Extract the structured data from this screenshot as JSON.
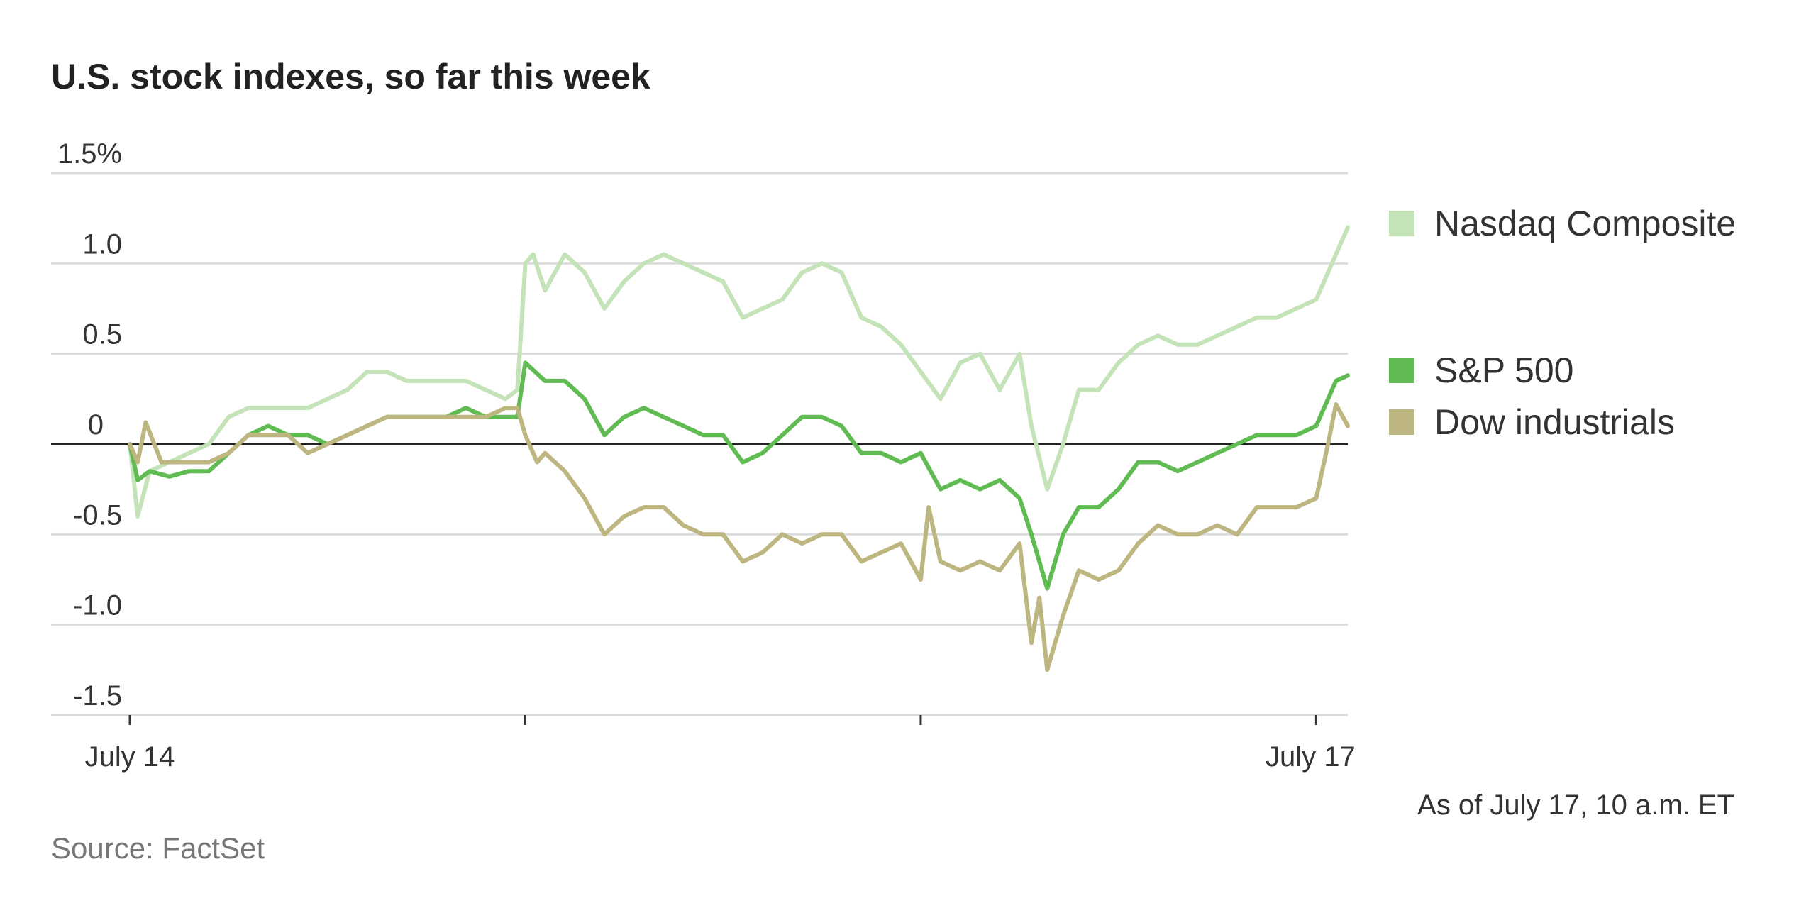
{
  "chart_data": {
    "type": "line",
    "title": "U.S. stock indexes, so far this week",
    "note": "As of July 17, 10 a.m. ET",
    "source": "Source: FactSet",
    "ylim": [
      -1.5,
      1.5
    ],
    "y_ticks": [
      {
        "value": 1.5,
        "label": "1.5%"
      },
      {
        "value": 1.0,
        "label": "1.0"
      },
      {
        "value": 0.5,
        "label": "0.5"
      },
      {
        "value": 0,
        "label": "0"
      },
      {
        "value": -0.5,
        "label": "-0.5"
      },
      {
        "value": -1.0,
        "label": "-1.0"
      },
      {
        "value": -1.5,
        "label": "-1.5"
      }
    ],
    "xlim": [
      0,
      3.08
    ],
    "x_ticks": [
      {
        "value": 0,
        "label": "July 14"
      },
      {
        "value": 1,
        "label": ""
      },
      {
        "value": 2,
        "label": ""
      },
      {
        "value": 3,
        "label": "July 17"
      }
    ],
    "grid": true,
    "legend_position": "right",
    "series": [
      {
        "name": "Nasdaq Composite",
        "color": "#c5e3b8",
        "points": [
          [
            0,
            0
          ],
          [
            0.02,
            -0.4
          ],
          [
            0.05,
            -0.15
          ],
          [
            0.1,
            -0.1
          ],
          [
            0.15,
            -0.05
          ],
          [
            0.2,
            0.0
          ],
          [
            0.25,
            0.15
          ],
          [
            0.3,
            0.2
          ],
          [
            0.35,
            0.2
          ],
          [
            0.4,
            0.2
          ],
          [
            0.45,
            0.2
          ],
          [
            0.5,
            0.25
          ],
          [
            0.55,
            0.3
          ],
          [
            0.6,
            0.4
          ],
          [
            0.65,
            0.4
          ],
          [
            0.7,
            0.35
          ],
          [
            0.75,
            0.35
          ],
          [
            0.8,
            0.35
          ],
          [
            0.85,
            0.35
          ],
          [
            0.9,
            0.3
          ],
          [
            0.95,
            0.25
          ],
          [
            0.98,
            0.3
          ],
          [
            1.0,
            1.0
          ],
          [
            1.02,
            1.05
          ],
          [
            1.05,
            0.85
          ],
          [
            1.1,
            1.05
          ],
          [
            1.15,
            0.95
          ],
          [
            1.2,
            0.75
          ],
          [
            1.25,
            0.9
          ],
          [
            1.3,
            1.0
          ],
          [
            1.35,
            1.05
          ],
          [
            1.4,
            1.0
          ],
          [
            1.45,
            0.95
          ],
          [
            1.5,
            0.9
          ],
          [
            1.55,
            0.7
          ],
          [
            1.6,
            0.75
          ],
          [
            1.65,
            0.8
          ],
          [
            1.7,
            0.95
          ],
          [
            1.75,
            1.0
          ],
          [
            1.8,
            0.95
          ],
          [
            1.85,
            0.7
          ],
          [
            1.9,
            0.65
          ],
          [
            1.95,
            0.55
          ],
          [
            2.0,
            0.4
          ],
          [
            2.05,
            0.25
          ],
          [
            2.1,
            0.45
          ],
          [
            2.15,
            0.5
          ],
          [
            2.2,
            0.3
          ],
          [
            2.25,
            0.5
          ],
          [
            2.28,
            0.1
          ],
          [
            2.32,
            -0.25
          ],
          [
            2.36,
            0.0
          ],
          [
            2.4,
            0.3
          ],
          [
            2.45,
            0.3
          ],
          [
            2.5,
            0.45
          ],
          [
            2.55,
            0.55
          ],
          [
            2.6,
            0.6
          ],
          [
            2.65,
            0.55
          ],
          [
            2.7,
            0.55
          ],
          [
            2.75,
            0.6
          ],
          [
            2.8,
            0.65
          ],
          [
            2.85,
            0.7
          ],
          [
            2.9,
            0.7
          ],
          [
            2.95,
            0.75
          ],
          [
            3.0,
            0.8
          ],
          [
            3.05,
            1.05
          ],
          [
            3.08,
            1.2
          ]
        ]
      },
      {
        "name": "S&P 500",
        "color": "#61bb53",
        "points": [
          [
            0,
            0
          ],
          [
            0.02,
            -0.2
          ],
          [
            0.05,
            -0.15
          ],
          [
            0.1,
            -0.18
          ],
          [
            0.15,
            -0.15
          ],
          [
            0.2,
            -0.15
          ],
          [
            0.25,
            -0.05
          ],
          [
            0.3,
            0.05
          ],
          [
            0.35,
            0.1
          ],
          [
            0.4,
            0.05
          ],
          [
            0.45,
            0.05
          ],
          [
            0.5,
            0.0
          ],
          [
            0.55,
            0.05
          ],
          [
            0.6,
            0.1
          ],
          [
            0.65,
            0.15
          ],
          [
            0.7,
            0.15
          ],
          [
            0.75,
            0.15
          ],
          [
            0.8,
            0.15
          ],
          [
            0.85,
            0.2
          ],
          [
            0.9,
            0.15
          ],
          [
            0.95,
            0.15
          ],
          [
            0.98,
            0.15
          ],
          [
            1.0,
            0.45
          ],
          [
            1.05,
            0.35
          ],
          [
            1.1,
            0.35
          ],
          [
            1.15,
            0.25
          ],
          [
            1.2,
            0.05
          ],
          [
            1.25,
            0.15
          ],
          [
            1.3,
            0.2
          ],
          [
            1.35,
            0.15
          ],
          [
            1.4,
            0.1
          ],
          [
            1.45,
            0.05
          ],
          [
            1.5,
            0.05
          ],
          [
            1.55,
            -0.1
          ],
          [
            1.6,
            -0.05
          ],
          [
            1.65,
            0.05
          ],
          [
            1.7,
            0.15
          ],
          [
            1.75,
            0.15
          ],
          [
            1.8,
            0.1
          ],
          [
            1.85,
            -0.05
          ],
          [
            1.9,
            -0.05
          ],
          [
            1.95,
            -0.1
          ],
          [
            2.0,
            -0.05
          ],
          [
            2.05,
            -0.25
          ],
          [
            2.1,
            -0.2
          ],
          [
            2.15,
            -0.25
          ],
          [
            2.2,
            -0.2
          ],
          [
            2.25,
            -0.3
          ],
          [
            2.28,
            -0.5
          ],
          [
            2.32,
            -0.8
          ],
          [
            2.36,
            -0.5
          ],
          [
            2.4,
            -0.35
          ],
          [
            2.45,
            -0.35
          ],
          [
            2.5,
            -0.25
          ],
          [
            2.55,
            -0.1
          ],
          [
            2.6,
            -0.1
          ],
          [
            2.65,
            -0.15
          ],
          [
            2.7,
            -0.1
          ],
          [
            2.75,
            -0.05
          ],
          [
            2.8,
            0.0
          ],
          [
            2.85,
            0.05
          ],
          [
            2.9,
            0.05
          ],
          [
            2.95,
            0.05
          ],
          [
            3.0,
            0.1
          ],
          [
            3.05,
            0.35
          ],
          [
            3.08,
            0.38
          ]
        ]
      },
      {
        "name": "Dow industrials",
        "color": "#beb680",
        "points": [
          [
            0,
            0
          ],
          [
            0.02,
            -0.1
          ],
          [
            0.04,
            0.12
          ],
          [
            0.08,
            -0.1
          ],
          [
            0.1,
            -0.1
          ],
          [
            0.15,
            -0.1
          ],
          [
            0.2,
            -0.1
          ],
          [
            0.25,
            -0.05
          ],
          [
            0.3,
            0.05
          ],
          [
            0.35,
            0.05
          ],
          [
            0.4,
            0.05
          ],
          [
            0.45,
            -0.05
          ],
          [
            0.5,
            0.0
          ],
          [
            0.55,
            0.05
          ],
          [
            0.6,
            0.1
          ],
          [
            0.65,
            0.15
          ],
          [
            0.7,
            0.15
          ],
          [
            0.75,
            0.15
          ],
          [
            0.8,
            0.15
          ],
          [
            0.85,
            0.15
          ],
          [
            0.9,
            0.15
          ],
          [
            0.95,
            0.2
          ],
          [
            0.98,
            0.2
          ],
          [
            1.0,
            0.05
          ],
          [
            1.03,
            -0.1
          ],
          [
            1.05,
            -0.05
          ],
          [
            1.1,
            -0.15
          ],
          [
            1.15,
            -0.3
          ],
          [
            1.2,
            -0.5
          ],
          [
            1.25,
            -0.4
          ],
          [
            1.3,
            -0.35
          ],
          [
            1.35,
            -0.35
          ],
          [
            1.4,
            -0.45
          ],
          [
            1.45,
            -0.5
          ],
          [
            1.5,
            -0.5
          ],
          [
            1.55,
            -0.65
          ],
          [
            1.6,
            -0.6
          ],
          [
            1.65,
            -0.5
          ],
          [
            1.7,
            -0.55
          ],
          [
            1.75,
            -0.5
          ],
          [
            1.8,
            -0.5
          ],
          [
            1.85,
            -0.65
          ],
          [
            1.9,
            -0.6
          ],
          [
            1.95,
            -0.55
          ],
          [
            2.0,
            -0.75
          ],
          [
            2.02,
            -0.35
          ],
          [
            2.05,
            -0.65
          ],
          [
            2.1,
            -0.7
          ],
          [
            2.15,
            -0.65
          ],
          [
            2.2,
            -0.7
          ],
          [
            2.25,
            -0.55
          ],
          [
            2.28,
            -1.1
          ],
          [
            2.3,
            -0.85
          ],
          [
            2.32,
            -1.25
          ],
          [
            2.36,
            -0.95
          ],
          [
            2.4,
            -0.7
          ],
          [
            2.45,
            -0.75
          ],
          [
            2.5,
            -0.7
          ],
          [
            2.55,
            -0.55
          ],
          [
            2.6,
            -0.45
          ],
          [
            2.65,
            -0.5
          ],
          [
            2.7,
            -0.5
          ],
          [
            2.75,
            -0.45
          ],
          [
            2.8,
            -0.5
          ],
          [
            2.85,
            -0.35
          ],
          [
            2.9,
            -0.35
          ],
          [
            2.95,
            -0.35
          ],
          [
            3.0,
            -0.3
          ],
          [
            3.03,
            0.0
          ],
          [
            3.05,
            0.22
          ],
          [
            3.08,
            0.1
          ]
        ]
      }
    ]
  }
}
